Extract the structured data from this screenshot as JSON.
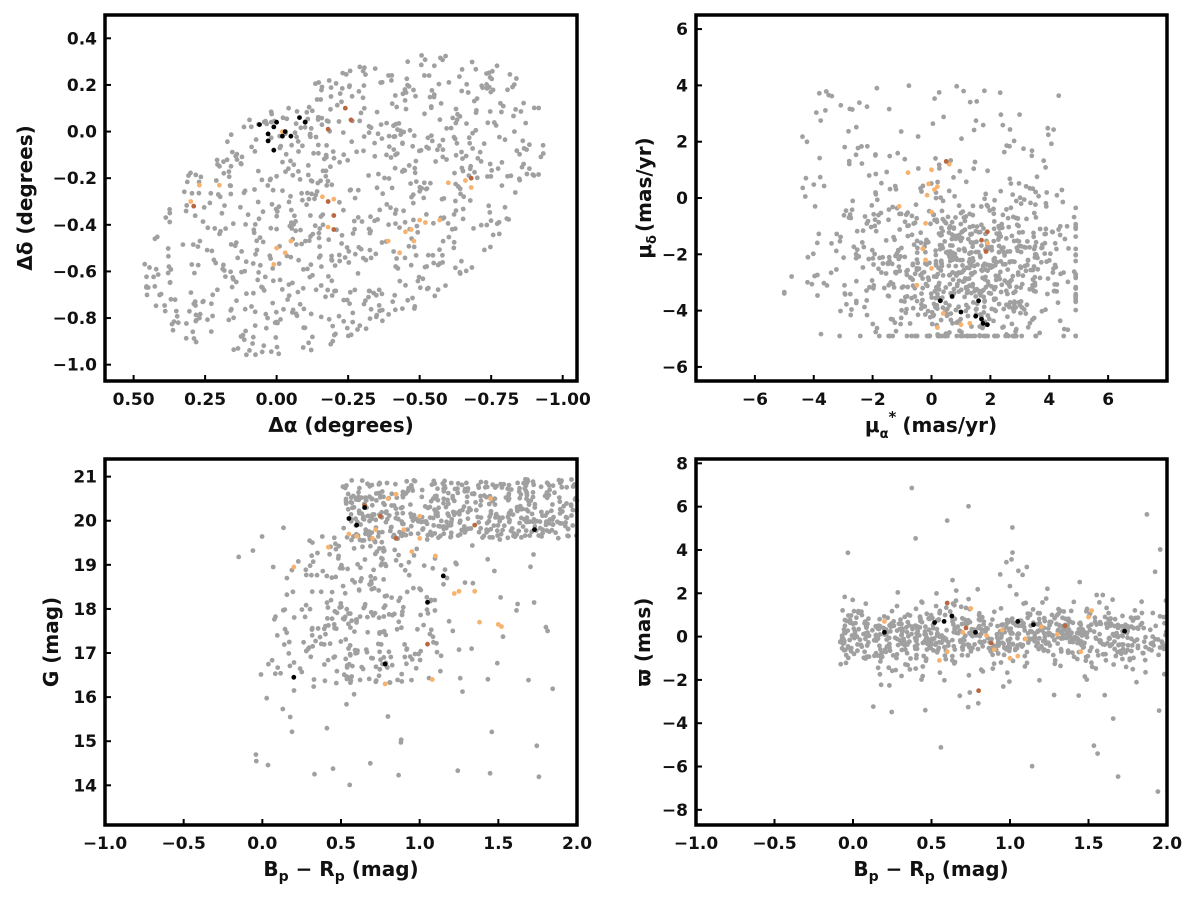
{
  "colors": {
    "field": "#a0a0a0",
    "member_light": "#f7b26e",
    "member_mid": "#b8673f",
    "member_dark": "#000000",
    "frame": "#000000"
  },
  "chart_data": [
    {
      "type": "scatter",
      "title": "",
      "xlabel_text": "Δα (degrees)",
      "ylabel_text": "Δδ (degrees)",
      "xlim": [
        0.6,
        -1.05
      ],
      "ylim": [
        -1.07,
        0.5
      ],
      "xticks": [
        0.5,
        0.25,
        0.0,
        -0.25,
        -0.5,
        -0.75,
        -1.0
      ],
      "xtick_labels": [
        "0.50",
        "0.25",
        "0.00",
        "−0.25",
        "−0.50",
        "−0.75",
        "−1.00"
      ],
      "yticks": [
        0.4,
        0.2,
        0.0,
        -0.2,
        -0.4,
        -0.6,
        -0.8,
        -1.0
      ],
      "ytick_labels": [
        "0.4",
        "0.2",
        "0.0",
        "−0.2",
        "−0.4",
        "−0.6",
        "−0.8",
        "−1.0"
      ],
      "grid": false,
      "series": [
        {
          "color_key": "member_dark",
          "points": [
            [
              -0.03,
              0.0
            ],
            [
              -0.02,
              -0.02
            ],
            [
              0.0,
              0.04
            ],
            [
              0.01,
              0.02
            ],
            [
              -0.05,
              -0.02
            ],
            [
              -0.08,
              0.06
            ],
            [
              -0.1,
              0.04
            ],
            [
              0.03,
              -0.01
            ],
            [
              0.06,
              0.03
            ],
            [
              0.03,
              -0.04
            ],
            [
              0.01,
              -0.08
            ]
          ]
        },
        {
          "color_key": "member_mid",
          "points": [
            [
              -0.1,
              0.04
            ],
            [
              -0.18,
              0.01
            ],
            [
              -0.24,
              0.1
            ],
            [
              -0.26,
              0.05
            ],
            [
              -0.2,
              -0.36
            ],
            [
              -0.18,
              -0.3
            ],
            [
              0.29,
              -0.32
            ],
            [
              -0.68,
              -0.2
            ],
            [
              -0.2,
              -0.42
            ]
          ]
        },
        {
          "color_key": "member_light",
          "points": [
            [
              0.3,
              -0.3
            ],
            [
              0.27,
              -0.23
            ],
            [
              0.2,
              -0.23
            ],
            [
              0.0,
              -0.5
            ],
            [
              -0.03,
              -0.52
            ],
            [
              -0.05,
              -0.47
            ],
            [
              0.01,
              -0.57
            ],
            [
              -0.16,
              -0.28
            ],
            [
              -0.2,
              -0.29
            ],
            [
              -0.18,
              -0.41
            ],
            [
              -0.39,
              -0.47
            ],
            [
              -0.43,
              -0.52
            ],
            [
              -0.45,
              -0.43
            ],
            [
              -0.47,
              -0.42
            ],
            [
              -0.48,
              -0.47
            ],
            [
              -0.5,
              -0.38
            ],
            [
              -0.52,
              -0.39
            ],
            [
              -0.57,
              -0.38
            ],
            [
              -0.6,
              -0.22
            ],
            [
              -0.66,
              -0.21
            ],
            [
              -0.68,
              -0.24
            ],
            [
              -0.02,
              0.0
            ]
          ]
        }
      ],
      "field_cloud": {
        "count": 820,
        "seed": 11,
        "shape": "tilted-ellipse",
        "center": [
          -0.24,
          -0.32
        ],
        "semi_major": 0.82,
        "semi_minor": 0.5,
        "angle_deg": 40,
        "x_range": [
          0.52,
          -1.0
        ],
        "y_range": [
          -1.02,
          0.42
        ]
      }
    },
    {
      "type": "scatter",
      "title": "",
      "xlabel_text": "μα* (mas/yr)",
      "ylabel_text": "μδ (mas/yr)",
      "xlim": [
        -8,
        8
      ],
      "ylim": [
        -6.5,
        6.5
      ],
      "xticks": [
        -6,
        -4,
        -2,
        0,
        2,
        4,
        6
      ],
      "xtick_labels": [
        "−6",
        "−4",
        "−2",
        "0",
        "2",
        "4",
        "6"
      ],
      "yticks": [
        6,
        4,
        2,
        0,
        -2,
        -4,
        -6
      ],
      "ytick_labels": [
        "6",
        "4",
        "2",
        "0",
        "−2",
        "−4",
        "−6"
      ],
      "grid": false,
      "series": [
        {
          "color_key": "member_dark",
          "points": [
            [
              0.3,
              -3.65
            ],
            [
              0.7,
              -3.5
            ],
            [
              1.0,
              -4.05
            ],
            [
              1.5,
              -4.2
            ],
            [
              1.7,
              -4.3
            ],
            [
              1.6,
              -3.65
            ],
            [
              1.9,
              -4.5
            ],
            [
              1.75,
              -4.45
            ]
          ]
        },
        {
          "color_key": "member_mid",
          "points": [
            [
              1.9,
              -1.2
            ],
            [
              1.85,
              -1.9
            ],
            [
              1.7,
              -1.5
            ],
            [
              0.5,
              1.3
            ]
          ]
        },
        {
          "color_key": "member_light",
          "points": [
            [
              0.0,
              1.0
            ],
            [
              -0.1,
              0.5
            ],
            [
              0.1,
              0.3
            ],
            [
              0.0,
              -0.5
            ],
            [
              -0.2,
              -0.9
            ],
            [
              -0.3,
              -1.8
            ],
            [
              -0.2,
              -2.2
            ],
            [
              0.0,
              -2.5
            ],
            [
              -0.5,
              -3.1
            ],
            [
              -1.1,
              -0.3
            ],
            [
              -0.8,
              0.9
            ],
            [
              0.4,
              -4.1
            ],
            [
              0.2,
              -4.6
            ],
            [
              1.0,
              -4.5
            ],
            [
              1.3,
              -4.45
            ],
            [
              0.6,
              1.2
            ],
            [
              -0.15,
              0.1
            ],
            [
              0.2,
              0.4
            ],
            [
              1.9,
              -1.6
            ]
          ]
        }
      ],
      "field_cloud": {
        "count": 900,
        "seed": 23,
        "shape": "clump",
        "center": [
          1.2,
          -2.6
        ],
        "spread": [
          2.0,
          1.5
        ],
        "x_range": [
          -5.0,
          4.9
        ],
        "y_range": [
          -4.9,
          4.8
        ]
      }
    },
    {
      "type": "scatter",
      "title": "",
      "xlabel_text": "Bp − Rp (mag)",
      "ylabel_text": "G (mag)",
      "xlim": [
        -1.0,
        2.0
      ],
      "ylim": [
        13.1,
        21.4
      ],
      "xticks": [
        -1.0,
        -0.5,
        0.0,
        0.5,
        1.0,
        1.5,
        2.0
      ],
      "xtick_labels": [
        "−1.0",
        "−0.5",
        "0.0",
        "0.5",
        "1.0",
        "1.5",
        "2.0"
      ],
      "yticks": [
        21,
        20,
        19,
        18,
        17,
        16,
        15,
        14
      ],
      "ytick_labels": [
        "21",
        "20",
        "19",
        "18",
        "17",
        "16",
        "15",
        "14"
      ],
      "grid": false,
      "series": [
        {
          "color_key": "member_dark",
          "points": [
            [
              0.2,
              16.45
            ],
            [
              0.55,
              20.05
            ],
            [
              0.6,
              19.9
            ],
            [
              0.65,
              20.3
            ],
            [
              0.78,
              16.75
            ],
            [
              1.05,
              18.15
            ],
            [
              1.15,
              18.75
            ],
            [
              1.73,
              19.8
            ]
          ]
        },
        {
          "color_key": "member_mid",
          "points": [
            [
              0.65,
              20.35
            ],
            [
              0.85,
              19.6
            ],
            [
              1.35,
              19.9
            ],
            [
              1.05,
              17.2
            ],
            [
              0.75,
              20.1
            ]
          ]
        },
        {
          "color_key": "member_light",
          "points": [
            [
              0.2,
              18.95
            ],
            [
              0.42,
              19.4
            ],
            [
              0.55,
              19.7
            ],
            [
              0.6,
              19.65
            ],
            [
              0.7,
              19.6
            ],
            [
              0.72,
              19.8
            ],
            [
              0.8,
              20.5
            ],
            [
              0.85,
              20.6
            ],
            [
              0.9,
              19.8
            ],
            [
              1.0,
              19.6
            ],
            [
              1.0,
              20.1
            ],
            [
              1.1,
              19.2
            ],
            [
              1.25,
              18.4
            ],
            [
              1.35,
              18.4
            ],
            [
              1.38,
              17.7
            ],
            [
              1.45,
              20.5
            ],
            [
              1.5,
              17.65
            ],
            [
              1.52,
              17.6
            ],
            [
              0.78,
              16.3
            ],
            [
              1.08,
              16.4
            ],
            [
              0.95,
              19.3
            ],
            [
              1.22,
              18.35
            ]
          ]
        }
      ],
      "field_cloud": {
        "count": 820,
        "seed": 37,
        "shape": "cmd",
        "x_range": [
          -0.15,
          2.0
        ],
        "y_range": [
          13.4,
          20.95
        ]
      }
    },
    {
      "type": "scatter",
      "title": "",
      "xlabel_text": "Bp − Rp (mag)",
      "ylabel_text": "ϖ (mas)",
      "xlim": [
        -1.0,
        2.0
      ],
      "ylim": [
        -8.7,
        8.2
      ],
      "xticks": [
        -1.0,
        -0.5,
        0.0,
        0.5,
        1.0,
        1.5,
        2.0
      ],
      "xtick_labels": [
        "−1.0",
        "−0.5",
        "0.0",
        "0.5",
        "1.0",
        "1.5",
        "2.0"
      ],
      "yticks": [
        8,
        6,
        4,
        2,
        0,
        -2,
        -4,
        -6,
        -8
      ],
      "ytick_labels": [
        "8",
        "6",
        "4",
        "2",
        "0",
        "−2",
        "−4",
        "−6",
        "−8"
      ],
      "grid": false,
      "series": [
        {
          "color_key": "member_dark",
          "points": [
            [
              0.2,
              0.2
            ],
            [
              0.52,
              0.65
            ],
            [
              0.58,
              0.7
            ],
            [
              0.63,
              0.95
            ],
            [
              0.78,
              0.2
            ],
            [
              1.05,
              0.7
            ],
            [
              1.15,
              0.55
            ],
            [
              1.73,
              0.25
            ]
          ]
        },
        {
          "color_key": "member_mid",
          "points": [
            [
              0.6,
              1.55
            ],
            [
              0.8,
              -2.5
            ],
            [
              0.88,
              -0.3
            ],
            [
              1.35,
              0.5
            ],
            [
              0.72,
              0.4
            ]
          ]
        },
        {
          "color_key": "member_light",
          "points": [
            [
              0.2,
              0.7
            ],
            [
              0.55,
              -1.1
            ],
            [
              0.6,
              -0.7
            ],
            [
              0.7,
              0.2
            ],
            [
              0.75,
              1.3
            ],
            [
              0.85,
              0.05
            ],
            [
              0.9,
              -0.6
            ],
            [
              0.95,
              0.3
            ],
            [
              1.0,
              -1.0
            ],
            [
              1.1,
              -0.1
            ],
            [
              1.2,
              0.45
            ],
            [
              1.3,
              0.1
            ],
            [
              1.45,
              -0.7
            ],
            [
              1.5,
              0.9
            ],
            [
              1.52,
              1.2
            ],
            [
              1.05,
              -0.9
            ]
          ]
        }
      ],
      "field_cloud": {
        "count": 820,
        "seed": 53,
        "shape": "parallax",
        "x_range": [
          -0.15,
          2.0
        ],
        "y_range": [
          -8.0,
          7.3
        ]
      }
    }
  ]
}
